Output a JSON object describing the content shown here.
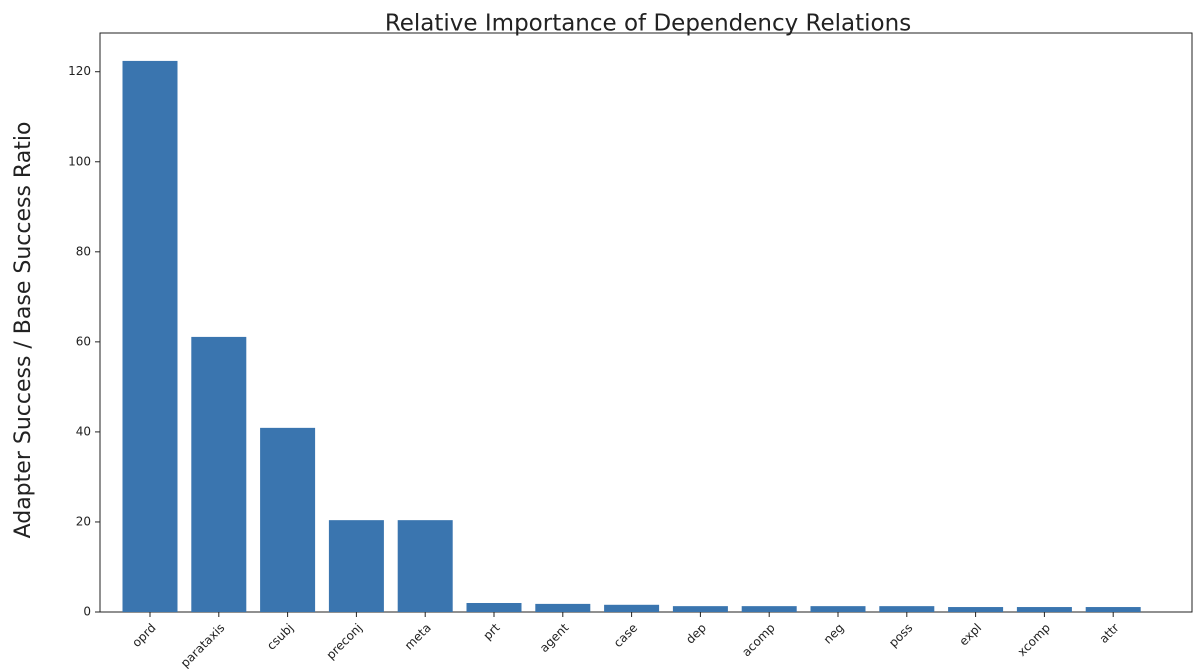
{
  "chart_data": {
    "type": "bar",
    "title": "Relative Importance of Dependency Relations",
    "y_label": "Adapter Success / Base Success Ratio",
    "categories": [
      "oprd",
      "parataxis",
      "csubj",
      "preconj",
      "meta",
      "prt",
      "agent",
      "case",
      "dep",
      "acomp",
      "neg",
      "poss",
      "expl",
      "xcomp",
      "attr"
    ],
    "values": [
      122.4,
      61.1,
      40.9,
      20.4,
      20.4,
      2.0,
      1.8,
      1.6,
      1.3,
      1.3,
      1.3,
      1.3,
      1.1,
      1.1,
      1.1
    ],
    "color": "#3a75af",
    "ylim": [
      0,
      128.6
    ],
    "yticks": [
      0,
      20,
      40,
      60,
      80,
      100,
      120
    ],
    "grid": false
  }
}
